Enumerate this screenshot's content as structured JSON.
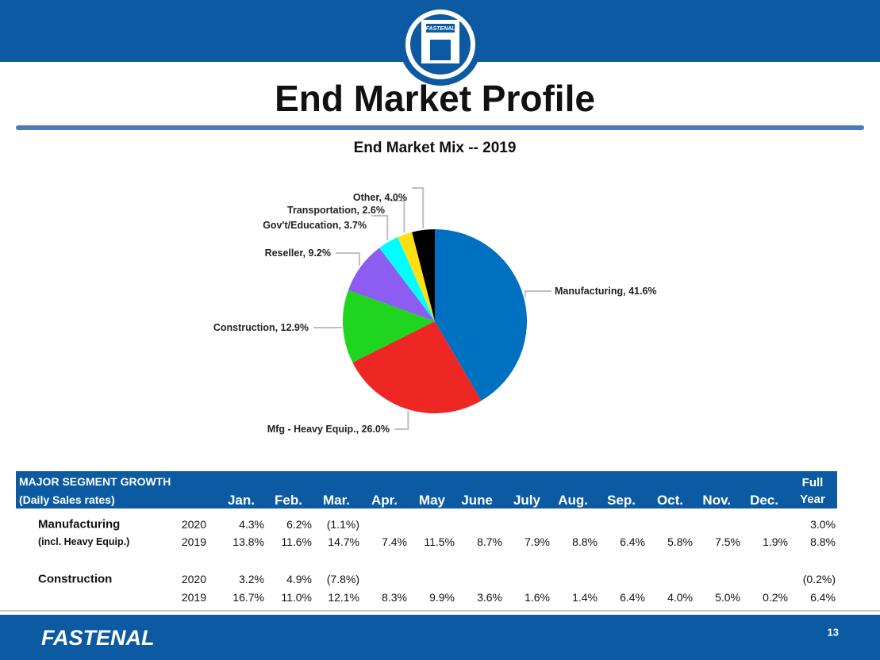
{
  "header": {
    "logo_text": "FASTENAL",
    "title": "End Market Profile"
  },
  "chart_data": {
    "type": "pie",
    "title": "End Market Mix -- 2019",
    "categories": [
      "Manufacturing",
      "Mfg - Heavy Equip.",
      "Construction",
      "Reseller",
      "Gov't/Education",
      "Transportation",
      "Other"
    ],
    "values": [
      41.6,
      26.0,
      12.9,
      9.2,
      3.7,
      2.6,
      4.0
    ],
    "value_labels": [
      "41.6%",
      "26.0%",
      "12.9%",
      "9.2%",
      "3.7%",
      "2.6%",
      "4.0%"
    ],
    "colors": [
      "#0070c0",
      "#ee2624",
      "#1fd51f",
      "#8d5cf0",
      "#00ffff",
      "#ffdf14",
      "#000000"
    ]
  },
  "table": {
    "title": [
      "MAJOR SEGMENT GROWTH",
      "(Daily Sales rates)"
    ],
    "columns": [
      "Jan.",
      "Feb.",
      "Mar.",
      "Apr.",
      "May",
      "June",
      "July",
      "Aug.",
      "Sep.",
      "Oct.",
      "Nov.",
      "Dec.",
      "Full Year"
    ],
    "rows": [
      [
        "Manufacturing",
        "2020",
        "4.3%",
        "6.2%",
        "(1.1%)",
        null,
        null,
        null,
        null,
        null,
        null,
        null,
        null,
        null,
        "3.0%"
      ],
      [
        "(incl. Heavy Equip.)",
        "2019",
        "13.8%",
        "11.6%",
        "14.7%",
        "7.4%",
        "11.5%",
        "8.7%",
        "7.9%",
        "8.8%",
        "6.4%",
        "5.8%",
        "7.5%",
        "1.9%",
        "8.8%"
      ],
      [
        "Construction",
        "2020",
        "3.2%",
        "4.9%",
        "(7.8%)",
        null,
        null,
        null,
        null,
        null,
        null,
        null,
        null,
        null,
        "(0.2%)"
      ],
      [
        null,
        "2019",
        "16.7%",
        "11.0%",
        "12.1%",
        "8.3%",
        "9.9%",
        "3.6%",
        "1.6%",
        "1.4%",
        "6.4%",
        "4.0%",
        "5.0%",
        "0.2%",
        "6.4%"
      ]
    ]
  },
  "footer": {
    "logo_text": "FASTENAL",
    "page_number": "13"
  }
}
